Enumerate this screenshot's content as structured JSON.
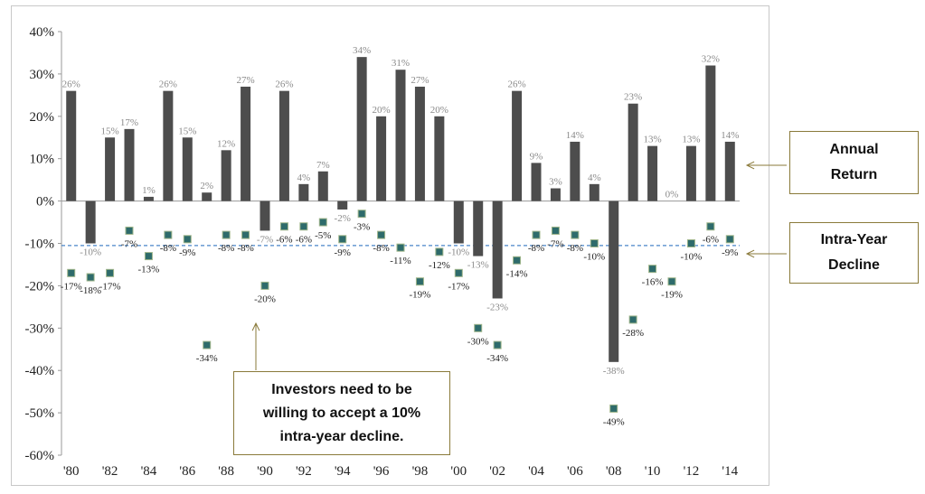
{
  "chart_data": {
    "type": "bar",
    "categories": [
      "1980",
      "1981",
      "1982",
      "1983",
      "1984",
      "1985",
      "1986",
      "1987",
      "1988",
      "1989",
      "1990",
      "1991",
      "1992",
      "1993",
      "1994",
      "1995",
      "1996",
      "1997",
      "1998",
      "1999",
      "2000",
      "2001",
      "2002",
      "2003",
      "2004",
      "2005",
      "2006",
      "2007",
      "2008",
      "2009",
      "2010",
      "2011",
      "2012",
      "2013",
      "2014"
    ],
    "x_tick_labels": [
      "'80",
      "'82",
      "'84",
      "'86",
      "'88",
      "'90",
      "'92",
      "'94",
      "'96",
      "'98",
      "'00",
      "'02",
      "'04",
      "'06",
      "'08",
      "'10",
      "'12",
      "'14"
    ],
    "series": [
      {
        "name": "Annual Return",
        "kind": "bar",
        "color": "#4d4d4d",
        "values": [
          26,
          -10,
          15,
          17,
          1,
          26,
          15,
          2,
          12,
          27,
          -7,
          26,
          4,
          7,
          -2,
          34,
          20,
          31,
          27,
          20,
          -10,
          -13,
          -23,
          26,
          9,
          3,
          14,
          4,
          -38,
          23,
          13,
          0,
          13,
          32,
          14
        ],
        "labels": [
          "26%",
          "-10%",
          "15%",
          "17%",
          "1%",
          "26%",
          "15%",
          "2%",
          "12%",
          "27%",
          "-7%",
          "26%",
          "4%",
          "7%",
          "-2%",
          "34%",
          "20%",
          "31%",
          "27%",
          "20%",
          "-10%",
          "-13%",
          "-23%",
          "26%",
          "9%",
          "3%",
          "14%",
          "4%",
          "-38%",
          "23%",
          "13%",
          "0%",
          "13%",
          "32%",
          "14%"
        ]
      },
      {
        "name": "Intra-Year Decline",
        "kind": "marker",
        "color": "#2e6b6b",
        "values": [
          -17,
          -18,
          -17,
          -7,
          -13,
          -8,
          -9,
          -34,
          -8,
          -8,
          -20,
          -6,
          -6,
          -5,
          -9,
          -3,
          -8,
          -11,
          -19,
          -12,
          -17,
          -30,
          -34,
          -14,
          -8,
          -7,
          -8,
          -10,
          -49,
          -28,
          -16,
          -19,
          -10,
          -6,
          -9
        ],
        "labels": [
          "-17%",
          "-18%",
          "-17%",
          "-7%",
          "-13%",
          "-8%",
          "-9%",
          "-34%",
          "-8%",
          "-8%",
          "-20%",
          "-6%",
          "-6%",
          "-5%",
          "-9%",
          "-3%",
          "-8%",
          "-11%",
          "-19%",
          "-12%",
          "-17%",
          "-30%",
          "-34%",
          "-14%",
          "-8%",
          "-7%",
          "-8%",
          "-10%",
          "-49%",
          "-28%",
          "-16%",
          "-19%",
          "-10%",
          "-6%",
          "-9%"
        ]
      }
    ],
    "y_tick_labels": [
      "40%",
      "30%",
      "20%",
      "10%",
      "0%",
      "-10%",
      "-20%",
      "-30%",
      "-40%",
      "-50%",
      "-60%"
    ],
    "ylim": [
      -60,
      40
    ],
    "reference_line": {
      "value": -10.5,
      "color": "#4a86c8",
      "style": "dashed"
    },
    "title": "",
    "xlabel": "",
    "ylabel": "",
    "grid": false
  },
  "callouts": {
    "annual_line1": "Annual",
    "annual_line2": "Return",
    "intra_line1": "Intra-Year",
    "intra_line2": "Decline",
    "note_line1": "Investors need to be",
    "note_line2": "willing to accept a 10%",
    "note_line3": "intra-year decline."
  }
}
